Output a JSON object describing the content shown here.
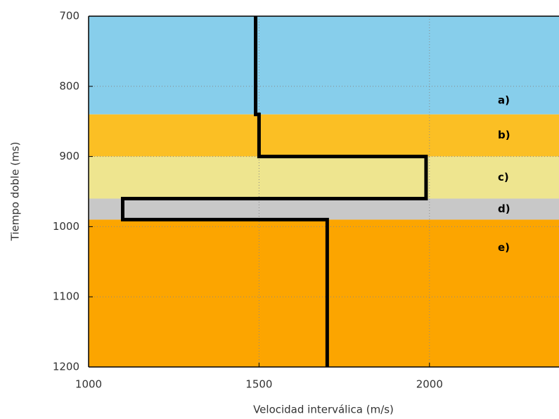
{
  "chart_data": {
    "type": "line",
    "xlabel": "Velocidad interválica (m/s)",
    "ylabel": "Tiempo doble (ms)",
    "xlim": [
      1000,
      2380
    ],
    "ylim": [
      700,
      1200
    ],
    "y_inverted": true,
    "xticks": [
      1000,
      1500,
      2000
    ],
    "yticks": [
      700,
      800,
      900,
      1000,
      1100,
      1200
    ],
    "grid": true,
    "layers": [
      {
        "label": "a)",
        "top": 700,
        "bottom": 840,
        "color": "#87ceeb"
      },
      {
        "label": "b)",
        "top": 840,
        "bottom": 900,
        "color": "#fbbf24"
      },
      {
        "label": "c)",
        "top": 900,
        "bottom": 960,
        "color": "#eee58f"
      },
      {
        "label": "d)",
        "top": 960,
        "bottom": 990,
        "color": "#c8c8c8"
      },
      {
        "label": "e)",
        "top": 990,
        "bottom": 1200,
        "color": "#fca500"
      }
    ],
    "series": [
      {
        "color": "#000000",
        "x": [
          1490,
          1490,
          1500,
          1500,
          1990,
          1990,
          1100,
          1100,
          1700,
          1700
        ],
        "y": [
          700,
          840,
          840,
          900,
          900,
          960,
          960,
          990,
          990,
          1200
        ]
      }
    ]
  }
}
